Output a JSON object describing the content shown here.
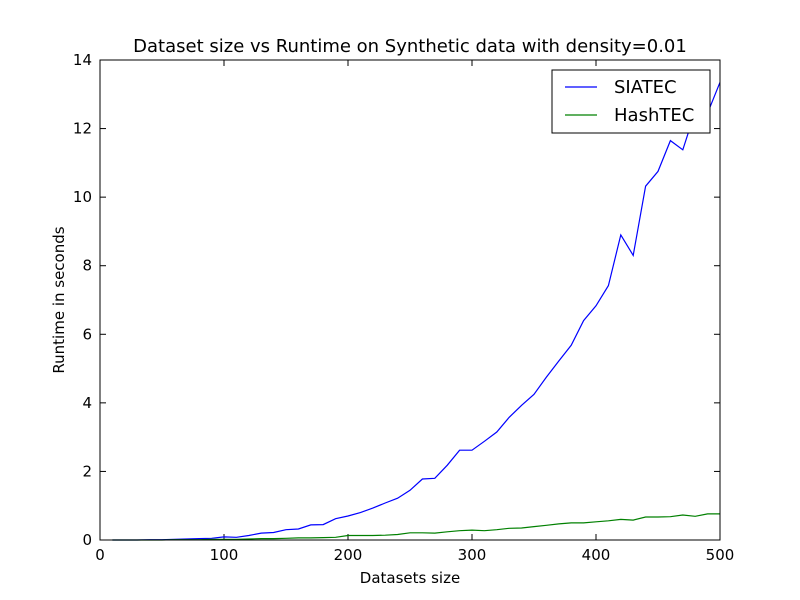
{
  "chart_data": {
    "type": "line",
    "title": "Dataset size vs Runtime on Synthetic data with density=0.01",
    "xlabel": "Datasets size",
    "ylabel": "Runtime in seconds",
    "xlim": [
      0,
      500
    ],
    "ylim": [
      0,
      14
    ],
    "xticks": [
      "0",
      "100",
      "200",
      "300",
      "400",
      "500"
    ],
    "yticks": [
      "0",
      "2",
      "4",
      "6",
      "8",
      "10",
      "12",
      "14"
    ],
    "grid": false,
    "legend_position": "top-right",
    "x": [
      10,
      20,
      30,
      40,
      50,
      60,
      70,
      80,
      90,
      100,
      110,
      120,
      130,
      140,
      150,
      160,
      170,
      180,
      190,
      200,
      210,
      220,
      230,
      240,
      250,
      260,
      270,
      280,
      290,
      300,
      310,
      320,
      330,
      340,
      350,
      360,
      370,
      380,
      390,
      400,
      410,
      420,
      430,
      440,
      450,
      460,
      470,
      480,
      490,
      500
    ],
    "series": [
      {
        "name": "SIATEC",
        "color": "#0000ff",
        "values": [
          0.0,
          0.0,
          0.0,
          0.01,
          0.01,
          0.02,
          0.03,
          0.04,
          0.05,
          0.09,
          0.08,
          0.13,
          0.2,
          0.22,
          0.3,
          0.32,
          0.44,
          0.45,
          0.62,
          0.7,
          0.8,
          0.93,
          1.08,
          1.22,
          1.45,
          1.78,
          1.8,
          2.18,
          2.62,
          2.62,
          2.88,
          3.15,
          3.58,
          3.93,
          4.25,
          4.75,
          5.22,
          5.68,
          6.4,
          6.83,
          7.42,
          8.9,
          8.3,
          10.32,
          10.75,
          11.65,
          11.38,
          12.5,
          12.45,
          13.35
        ]
      },
      {
        "name": "HashTEC",
        "color": "#008000",
        "values": [
          0.0,
          0.0,
          0.0,
          0.0,
          0.0,
          0.01,
          0.01,
          0.01,
          0.02,
          0.02,
          0.02,
          0.03,
          0.04,
          0.04,
          0.05,
          0.06,
          0.06,
          0.07,
          0.08,
          0.13,
          0.13,
          0.13,
          0.14,
          0.16,
          0.21,
          0.21,
          0.2,
          0.24,
          0.27,
          0.29,
          0.27,
          0.3,
          0.34,
          0.35,
          0.39,
          0.43,
          0.47,
          0.5,
          0.5,
          0.53,
          0.56,
          0.6,
          0.58,
          0.67,
          0.67,
          0.68,
          0.73,
          0.69,
          0.76,
          0.76
        ]
      }
    ]
  }
}
